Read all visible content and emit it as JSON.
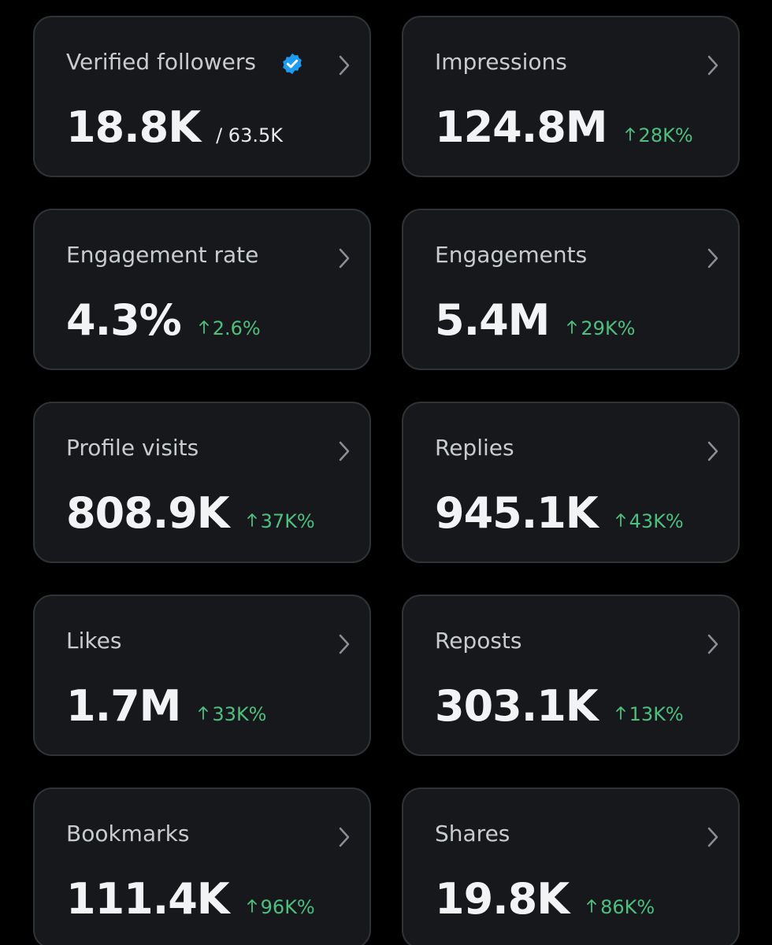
{
  "cards": [
    {
      "label": "Verified followers",
      "value": "18.8K",
      "total": "/ 63.5K"
    },
    {
      "label": "Impressions",
      "value": "124.8M",
      "change": "28K%"
    },
    {
      "label": "Engagement rate",
      "value": "4.3%",
      "change": "2.6%"
    },
    {
      "label": "Engagements",
      "value": "5.4M",
      "change": "29K%"
    },
    {
      "label": "Profile visits",
      "value": "808.9K",
      "change": "37K%"
    },
    {
      "label": "Replies",
      "value": "945.1K",
      "change": "43K%"
    },
    {
      "label": "Likes",
      "value": "1.7M",
      "change": "33K%"
    },
    {
      "label": "Reposts",
      "value": "303.1K",
      "change": "13K%"
    },
    {
      "label": "Bookmarks",
      "value": "111.4K",
      "change": "96K%"
    },
    {
      "label": "Shares",
      "value": "19.8K",
      "change": "86K%"
    }
  ]
}
